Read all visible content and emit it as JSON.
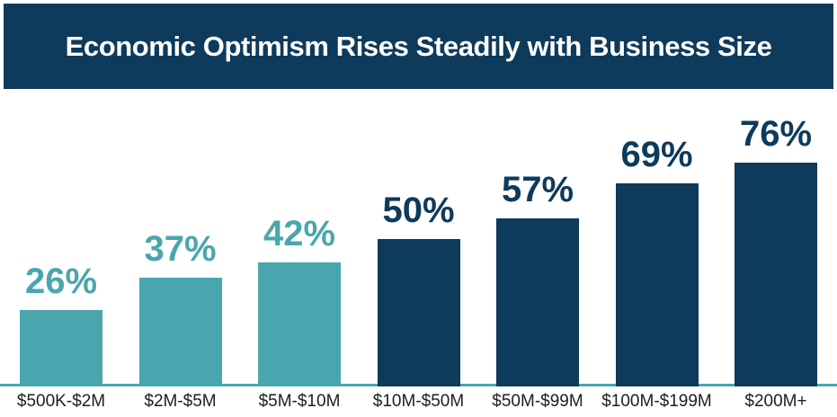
{
  "header": {
    "title": "Economic Optimism Rises Steadily with Business Size"
  },
  "colors": {
    "banner_navy": "#0E3A5B",
    "bar_teal": "#4AA6AE",
    "bar_navy": "#0E3A5B",
    "baseline_teal": "#4AA6AE",
    "axis_label_dark": "#1E1E1E",
    "title_white": "#FFFFFF",
    "background": "#FFFFFF"
  },
  "chart_data": {
    "type": "bar",
    "title": "Economic Optimism Rises Steadily with Business Size",
    "categories": [
      "$500K-$2M",
      "$2M-$5M",
      "$5M-$10M",
      "$10M-$50M",
      "$50M-$99M",
      "$100M-$199M",
      "$200M+"
    ],
    "values": [
      26,
      37,
      42,
      50,
      57,
      69,
      76
    ],
    "value_labels": [
      "26%",
      "37%",
      "42%",
      "50%",
      "57%",
      "69%",
      "76%"
    ],
    "bar_colors": [
      "#4AA6AE",
      "#4AA6AE",
      "#4AA6AE",
      "#0E3A5B",
      "#0E3A5B",
      "#0E3A5B",
      "#0E3A5B"
    ],
    "xlabel": "",
    "ylabel": "",
    "ylim": [
      0,
      100
    ],
    "grid": false,
    "legend": false,
    "value_labels_position": "above-bars",
    "baseline": "teal horizontal line at y=0 spanning full width"
  }
}
